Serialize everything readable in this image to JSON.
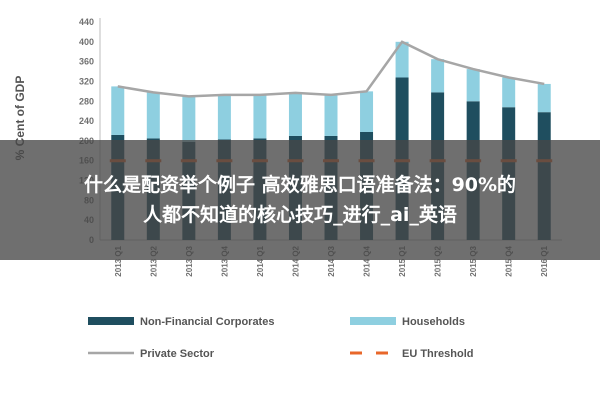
{
  "chart_data": {
    "type": "bar",
    "stacked": true,
    "ylabel": "% Cent of GDP",
    "ylim": [
      0,
      440
    ],
    "yticks": [
      0,
      40,
      80,
      120,
      160,
      200,
      240,
      280,
      320,
      360,
      400,
      440
    ],
    "grid": false,
    "legend_position": "bottom",
    "categories": [
      "2013 Q1",
      "2013 Q2",
      "2013 Q3",
      "2013 Q4",
      "2014 Q1",
      "2014 Q2",
      "2014 Q3",
      "2014 Q4",
      "2015 Q1",
      "2015 Q2",
      "2015 Q3",
      "2015 Q4",
      "2016 Q1"
    ],
    "series": [
      {
        "name": "Non-Financial Corporates",
        "kind": "bar",
        "color": "#1f4e5f",
        "values": [
          212,
          205,
          198,
          203,
          205,
          210,
          210,
          218,
          328,
          298,
          280,
          268,
          258
        ]
      },
      {
        "name": "Households",
        "kind": "bar",
        "color": "#8ecfe0",
        "values": [
          98,
          93,
          92,
          90,
          88,
          87,
          83,
          82,
          72,
          67,
          65,
          60,
          57
        ]
      },
      {
        "name": "Private Sector",
        "kind": "line",
        "color": "#a6a6a6",
        "values": [
          310,
          298,
          290,
          293,
          293,
          297,
          293,
          300,
          400,
          365,
          345,
          328,
          315
        ]
      },
      {
        "name": "EU Threshold",
        "kind": "dash",
        "color": "#e8672a",
        "values": [
          160,
          160,
          160,
          160,
          160,
          160,
          160,
          160,
          160,
          160,
          160,
          160,
          160
        ]
      }
    ]
  },
  "overlay": {
    "line1": "什么是配资举个例子 高效雅思口语准备法：90%的",
    "line2": "人都不知道的核心技巧_进行_ai_英语"
  }
}
